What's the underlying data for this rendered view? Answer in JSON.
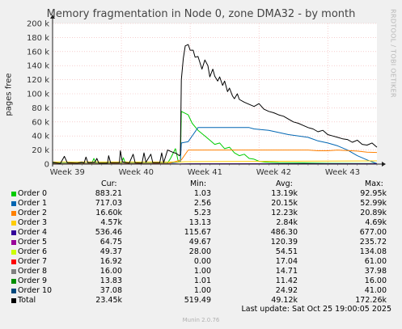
{
  "chart_data": {
    "type": "line",
    "title": "Memory fragmentation in Node 0, zone DMA32 - by month",
    "ylabel": "pages free",
    "ylim": [
      0,
      200000
    ],
    "yticks": [
      {
        "value": 0,
        "label": "0"
      },
      {
        "value": 20000,
        "label": "20 k"
      },
      {
        "value": 40000,
        "label": "40 k"
      },
      {
        "value": 60000,
        "label": "60 k"
      },
      {
        "value": 80000,
        "label": "80 k"
      },
      {
        "value": 100000,
        "label": "100 k"
      },
      {
        "value": 120000,
        "label": "120 k"
      },
      {
        "value": 140000,
        "label": "140 k"
      },
      {
        "value": 160000,
        "label": "160 k"
      },
      {
        "value": 180000,
        "label": "180 k"
      },
      {
        "value": 200000,
        "label": "200 k"
      }
    ],
    "xlim": [
      0,
      33
    ],
    "xlabel_unit": "days",
    "xticks": [
      {
        "value": 1.5,
        "label": "Week 39"
      },
      {
        "value": 8.5,
        "label": "Week 40"
      },
      {
        "value": 15.5,
        "label": "Week 41"
      },
      {
        "value": 22.5,
        "label": "Week 42"
      },
      {
        "value": 29.5,
        "label": "Week 43"
      }
    ],
    "series": [
      {
        "name": "Order 0",
        "color": "#00cc00",
        "points": [
          [
            0,
            1500
          ],
          [
            4,
            1200
          ],
          [
            4.2,
            8000
          ],
          [
            4.4,
            1500
          ],
          [
            7,
            1400
          ],
          [
            7.2,
            9000
          ],
          [
            7.4,
            1500
          ],
          [
            11.7,
            1500
          ],
          [
            12,
            8000
          ],
          [
            12.5,
            22000
          ],
          [
            12.8,
            3000
          ],
          [
            13,
            4000
          ],
          [
            13.1,
            75000
          ],
          [
            13.8,
            70000
          ],
          [
            14.2,
            58000
          ],
          [
            14.8,
            48000
          ],
          [
            15.5,
            40000
          ],
          [
            16,
            34000
          ],
          [
            16.5,
            28000
          ],
          [
            17,
            30000
          ],
          [
            17.5,
            22000
          ],
          [
            18,
            24000
          ],
          [
            18.5,
            16000
          ],
          [
            19,
            12000
          ],
          [
            19.5,
            14000
          ],
          [
            20,
            8000
          ],
          [
            20.5,
            7000
          ],
          [
            21,
            4000
          ],
          [
            21.5,
            3000
          ],
          [
            22,
            2500
          ],
          [
            23,
            2000
          ],
          [
            25,
            1800
          ],
          [
            28,
            1200
          ],
          [
            30,
            1000
          ],
          [
            32,
            900
          ],
          [
            33,
            880
          ]
        ]
      },
      {
        "name": "Order 1",
        "color": "#0066b3",
        "points": [
          [
            0,
            1000
          ],
          [
            11.7,
            1200
          ],
          [
            13,
            3000
          ],
          [
            13.1,
            30000
          ],
          [
            13.8,
            32000
          ],
          [
            14.3,
            42000
          ],
          [
            14.8,
            52000
          ],
          [
            20,
            52000
          ],
          [
            20.5,
            50000
          ],
          [
            22,
            48000
          ],
          [
            24,
            42000
          ],
          [
            26,
            38000
          ],
          [
            27,
            33000
          ],
          [
            28,
            30000
          ],
          [
            29,
            26000
          ],
          [
            30,
            20000
          ],
          [
            31,
            12000
          ],
          [
            32,
            6000
          ],
          [
            33,
            700
          ]
        ]
      },
      {
        "name": "Order 2",
        "color": "#ff8000",
        "points": [
          [
            0,
            600
          ],
          [
            11.7,
            800
          ],
          [
            13.1,
            6000
          ],
          [
            13.4,
            12000
          ],
          [
            13.8,
            20000
          ],
          [
            26,
            20000
          ],
          [
            27,
            19000
          ],
          [
            28,
            19000
          ],
          [
            29,
            20000
          ],
          [
            29.5,
            19500
          ],
          [
            31,
            18500
          ],
          [
            32,
            17000
          ],
          [
            33,
            16600
          ]
        ]
      },
      {
        "name": "Order 3",
        "color": "#ffcc00",
        "points": [
          [
            0,
            3000
          ],
          [
            13,
            3000
          ],
          [
            13.5,
            3500
          ],
          [
            33,
            4570
          ]
        ]
      },
      {
        "name": "Order 4",
        "color": "#330099",
        "points": [
          [
            0,
            150
          ],
          [
            13,
            200
          ],
          [
            14,
            600
          ],
          [
            33,
            540
          ]
        ]
      },
      {
        "name": "Order 5",
        "color": "#990099",
        "points": [
          [
            0,
            100
          ],
          [
            33,
            65
          ]
        ]
      },
      {
        "name": "Order 6",
        "color": "#ccff00",
        "points": [
          [
            0,
            60
          ],
          [
            33,
            50
          ]
        ]
      },
      {
        "name": "Order 7",
        "color": "#ff0000",
        "points": [
          [
            0,
            17
          ],
          [
            33,
            17
          ]
        ]
      },
      {
        "name": "Order 8",
        "color": "#808080",
        "points": [
          [
            0,
            16
          ],
          [
            33,
            16
          ]
        ]
      },
      {
        "name": "Order 9",
        "color": "#008f00",
        "points": [
          [
            0,
            12
          ],
          [
            33,
            14
          ]
        ]
      },
      {
        "name": "Order 10",
        "color": "#00487d",
        "points": [
          [
            0,
            25
          ],
          [
            33,
            37
          ]
        ]
      },
      {
        "name": "Total",
        "color": "#000000",
        "points": [
          [
            0,
            2500
          ],
          [
            0.8,
            1000
          ],
          [
            1.2,
            11000
          ],
          [
            1.5,
            2000
          ],
          [
            2.5,
            1500
          ],
          [
            3,
            2500
          ],
          [
            3.2,
            1500
          ],
          [
            3.4,
            10000
          ],
          [
            3.6,
            2000
          ],
          [
            4.3,
            2500
          ],
          [
            4.5,
            8000
          ],
          [
            4.7,
            1500
          ],
          [
            5.6,
            1500
          ],
          [
            5.7,
            12000
          ],
          [
            5.9,
            1800
          ],
          [
            6.8,
            2000
          ],
          [
            6.9,
            19000
          ],
          [
            7.1,
            3000
          ],
          [
            7.8,
            1500
          ],
          [
            8.2,
            14000
          ],
          [
            8.4,
            1800
          ],
          [
            9.1,
            1500
          ],
          [
            9.3,
            16000
          ],
          [
            9.5,
            2500
          ],
          [
            10,
            14000
          ],
          [
            10.2,
            2000
          ],
          [
            10.9,
            2000
          ],
          [
            11.1,
            16000
          ],
          [
            11.3,
            2000
          ],
          [
            11.7,
            20000
          ],
          [
            12.2,
            17000
          ],
          [
            12.6,
            15000
          ],
          [
            12.9,
            12000
          ],
          [
            13.0,
            14000
          ],
          [
            13.1,
            120000
          ],
          [
            13.3,
            150000
          ],
          [
            13.5,
            168000
          ],
          [
            13.8,
            170000
          ],
          [
            14,
            162000
          ],
          [
            14.3,
            162000
          ],
          [
            14.5,
            152000
          ],
          [
            14.8,
            153000
          ],
          [
            15.2,
            135000
          ],
          [
            15.5,
            148000
          ],
          [
            15.8,
            140000
          ],
          [
            16,
            124000
          ],
          [
            16.3,
            135000
          ],
          [
            16.5,
            125000
          ],
          [
            16.8,
            118000
          ],
          [
            17,
            124000
          ],
          [
            17.3,
            112000
          ],
          [
            17.5,
            118000
          ],
          [
            17.8,
            103000
          ],
          [
            18,
            108000
          ],
          [
            18.3,
            97000
          ],
          [
            18.5,
            93000
          ],
          [
            18.8,
            100000
          ],
          [
            19,
            92000
          ],
          [
            19.5,
            88000
          ],
          [
            20,
            85000
          ],
          [
            20.5,
            82000
          ],
          [
            21,
            86000
          ],
          [
            21.5,
            78000
          ],
          [
            22,
            75000
          ],
          [
            22.5,
            73000
          ],
          [
            23,
            70000
          ],
          [
            23.5,
            68000
          ],
          [
            24,
            64000
          ],
          [
            24.5,
            60000
          ],
          [
            25,
            58000
          ],
          [
            25.5,
            55000
          ],
          [
            26,
            52000
          ],
          [
            26.5,
            50000
          ],
          [
            27,
            46000
          ],
          [
            27.5,
            48000
          ],
          [
            28,
            42000
          ],
          [
            28.5,
            40000
          ],
          [
            29,
            38000
          ],
          [
            29.5,
            36000
          ],
          [
            30,
            35000
          ],
          [
            30.5,
            31000
          ],
          [
            31,
            34000
          ],
          [
            31.5,
            28000
          ],
          [
            32,
            27000
          ],
          [
            32.5,
            30000
          ],
          [
            33,
            24000
          ]
        ]
      }
    ]
  },
  "legend": {
    "headers": {
      "cur": "Cur:",
      "min": "Min:",
      "avg": "Avg:",
      "max": "Max:"
    },
    "rows": [
      {
        "name": "Order 0",
        "color": "#00cc00",
        "cur": "883.21",
        "min": "1.03",
        "avg": "13.19k",
        "max": "92.95k"
      },
      {
        "name": "Order 1",
        "color": "#0066b3",
        "cur": "717.03",
        "min": "2.56",
        "avg": "20.15k",
        "max": "52.99k"
      },
      {
        "name": "Order 2",
        "color": "#ff8000",
        "cur": "16.60k",
        "min": "5.23",
        "avg": "12.23k",
        "max": "20.89k"
      },
      {
        "name": "Order 3",
        "color": "#ffcc00",
        "cur": "4.57k",
        "min": "13.13",
        "avg": "2.84k",
        "max": "4.69k"
      },
      {
        "name": "Order 4",
        "color": "#330099",
        "cur": "536.46",
        "min": "115.67",
        "avg": "486.30",
        "max": "677.00"
      },
      {
        "name": "Order 5",
        "color": "#990099",
        "cur": "64.75",
        "min": "49.67",
        "avg": "120.39",
        "max": "235.72"
      },
      {
        "name": "Order 6",
        "color": "#ccff00",
        "cur": "49.37",
        "min": "28.00",
        "avg": "54.51",
        "max": "134.08"
      },
      {
        "name": "Order 7",
        "color": "#ff0000",
        "cur": "16.92",
        "min": "0.00",
        "avg": "17.04",
        "max": "61.00"
      },
      {
        "name": "Order 8",
        "color": "#808080",
        "cur": "16.00",
        "min": "1.00",
        "avg": "14.71",
        "max": "37.98"
      },
      {
        "name": "Order 9",
        "color": "#008f00",
        "cur": "13.83",
        "min": "1.01",
        "avg": "11.42",
        "max": "16.00"
      },
      {
        "name": "Order 10",
        "color": "#00487d",
        "cur": "37.08",
        "min": "1.00",
        "avg": "24.92",
        "max": "41.00"
      },
      {
        "name": "Total",
        "color": "#000000",
        "cur": "23.45k",
        "min": "519.49",
        "avg": "49.12k",
        "max": "172.26k"
      }
    ]
  },
  "last_update": "Last update: Sat Oct 25 19:00:05 2025",
  "watermark": "RRDTOOL / TOBI OETIKER",
  "footer": "Munin 2.0.76"
}
